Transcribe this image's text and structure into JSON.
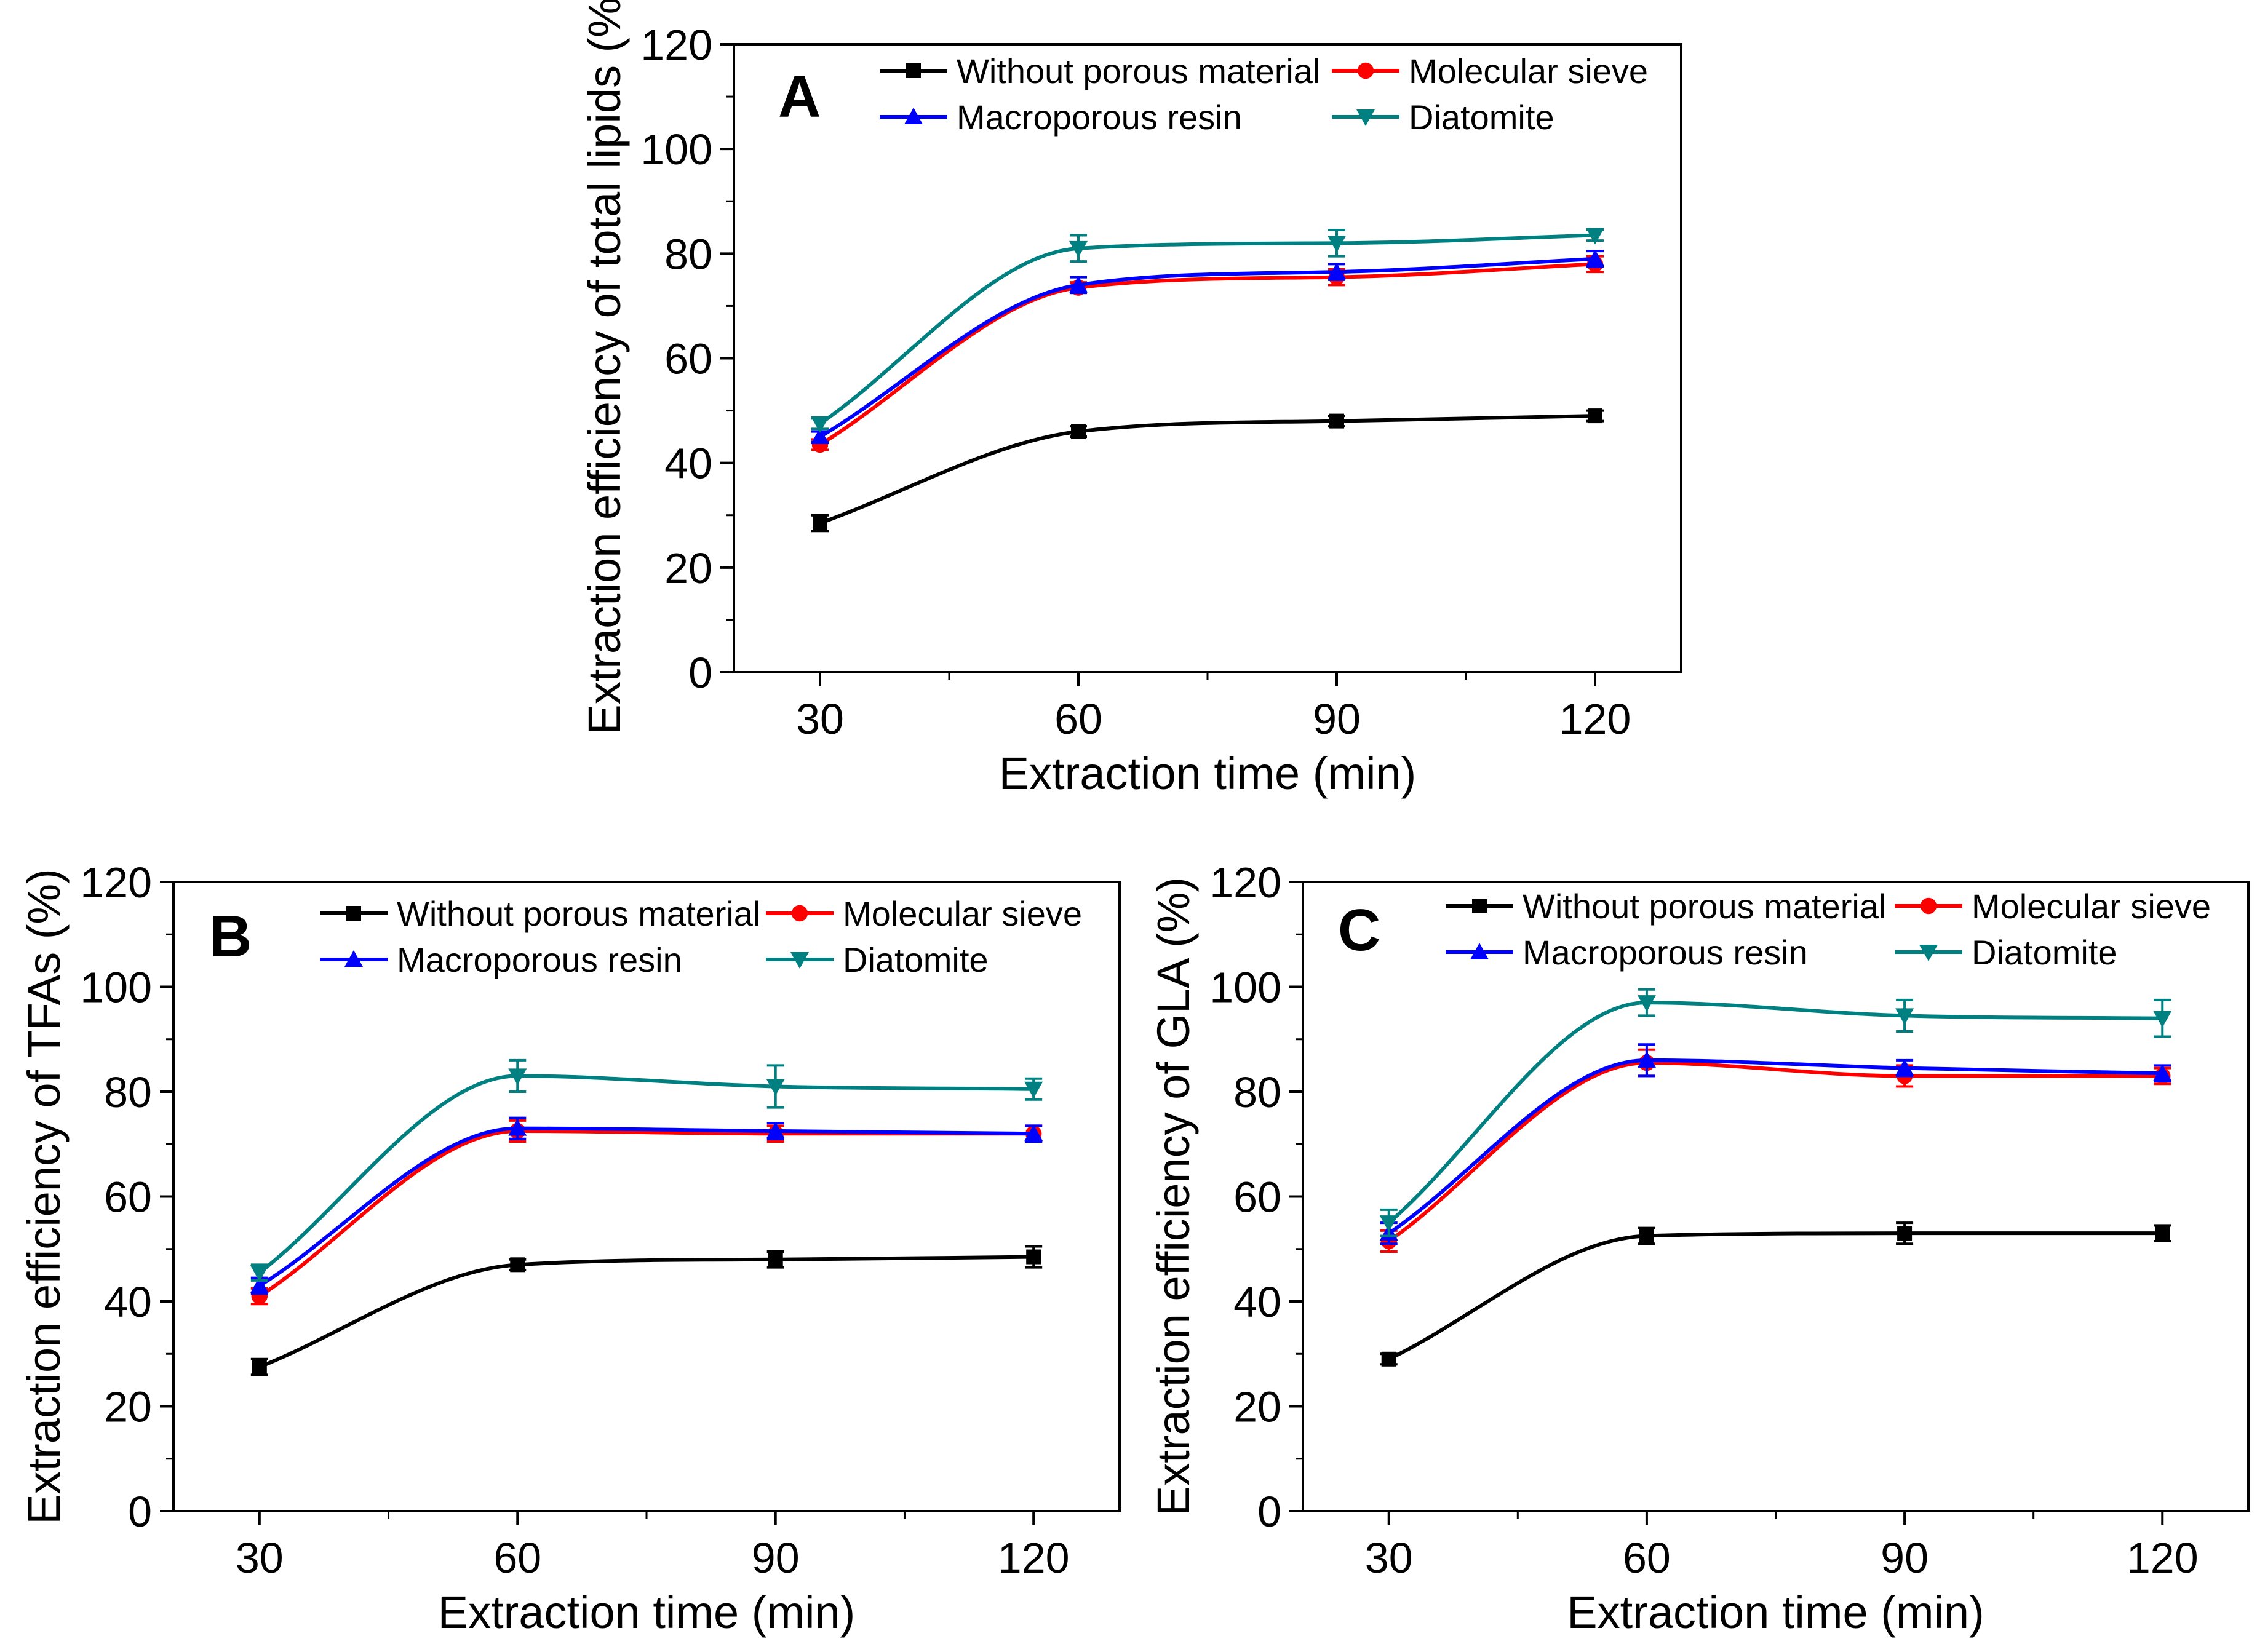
{
  "figure_name": "extraction-efficiency-figure",
  "series_style": [
    {
      "name": "Without porous material",
      "color": "#000000",
      "marker": "square"
    },
    {
      "name": "Molecular sieve",
      "color": "#ff0000",
      "marker": "circle"
    },
    {
      "name": "Macroporous resin",
      "color": "#0000ff",
      "marker": "triangle-up"
    },
    {
      "name": "Diatomite",
      "color": "#008080",
      "marker": "triangle-down"
    }
  ],
  "chart_data": [
    {
      "type": "line",
      "panel": "A",
      "xlabel": "Extraction time (min)",
      "ylabel": "Extraction efficiency of total lipids (%)",
      "x": [
        30,
        60,
        90,
        120
      ],
      "xticks": [
        "30",
        "60",
        "90",
        "120"
      ],
      "xlim": [
        20,
        130
      ],
      "ylim": [
        0,
        120
      ],
      "yticks": [
        "0",
        "20",
        "40",
        "60",
        "80",
        "100",
        "120"
      ],
      "series": [
        {
          "name": "Without porous material",
          "values": [
            28.5,
            46,
            48,
            49
          ],
          "errors": [
            1.5,
            1,
            1,
            1
          ]
        },
        {
          "name": "Molecular sieve",
          "values": [
            43.5,
            73.5,
            75.5,
            78
          ],
          "errors": [
            1,
            1,
            1.5,
            1.5
          ]
        },
        {
          "name": "Macroporous resin",
          "values": [
            45,
            74,
            76.5,
            79
          ],
          "errors": [
            1,
            1.5,
            1.5,
            1.5
          ]
        },
        {
          "name": "Diatomite",
          "values": [
            47.5,
            81,
            82,
            83.5
          ],
          "errors": [
            1,
            2.5,
            2.5,
            1
          ]
        }
      ]
    },
    {
      "type": "line",
      "panel": "B",
      "xlabel": "Extraction time (min)",
      "ylabel": "Extraction efficiency of TFAs (%)",
      "x": [
        30,
        60,
        90,
        120
      ],
      "xticks": [
        "30",
        "60",
        "90",
        "120"
      ],
      "xlim": [
        20,
        130
      ],
      "ylim": [
        0,
        120
      ],
      "yticks": [
        "0",
        "20",
        "40",
        "60",
        "80",
        "100",
        "120"
      ],
      "series": [
        {
          "name": "Without porous material",
          "values": [
            27.5,
            47,
            48,
            48.5
          ],
          "errors": [
            1.5,
            1,
            1.5,
            2
          ]
        },
        {
          "name": "Molecular sieve",
          "values": [
            41,
            72.5,
            72,
            72
          ],
          "errors": [
            1.5,
            2,
            1.5,
            1.5
          ]
        },
        {
          "name": "Macroporous resin",
          "values": [
            43,
            73,
            72.5,
            72
          ],
          "errors": [
            1.5,
            2,
            1.5,
            1.5
          ]
        },
        {
          "name": "Diatomite",
          "values": [
            45.5,
            83,
            81,
            80.5
          ],
          "errors": [
            1.5,
            3,
            4,
            2
          ]
        }
      ]
    },
    {
      "type": "line",
      "panel": "C",
      "xlabel": "Extraction time (min)",
      "ylabel": "Extraction efficiency of GLA (%)",
      "x": [
        30,
        60,
        90,
        120
      ],
      "xticks": [
        "30",
        "60",
        "90",
        "120"
      ],
      "xlim": [
        20,
        130
      ],
      "ylim": [
        0,
        120
      ],
      "yticks": [
        "0",
        "20",
        "40",
        "60",
        "80",
        "100",
        "120"
      ],
      "series": [
        {
          "name": "Without porous material",
          "values": [
            29,
            52.5,
            53,
            53
          ],
          "errors": [
            1,
            1.5,
            2,
            1.5
          ]
        },
        {
          "name": "Molecular sieve",
          "values": [
            51.5,
            85.5,
            83,
            83
          ],
          "errors": [
            2,
            2.5,
            2,
            1.5
          ]
        },
        {
          "name": "Macroporous resin",
          "values": [
            53,
            86,
            84.5,
            83.5
          ],
          "errors": [
            2,
            3,
            1.5,
            1.5
          ]
        },
        {
          "name": "Diatomite",
          "values": [
            55,
            97,
            94.5,
            94
          ],
          "errors": [
            2.5,
            2.5,
            3,
            3.5
          ]
        }
      ]
    }
  ]
}
